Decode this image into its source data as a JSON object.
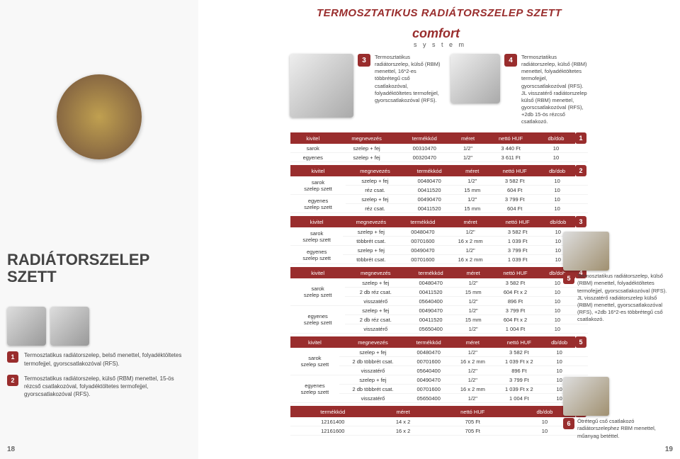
{
  "colors": {
    "brand": "#992d2d",
    "text": "#444",
    "header_bg": "#992d2d",
    "header_fg": "#ffffff"
  },
  "left": {
    "big_title_l1": "RADIÁTORSZELEP",
    "big_title_l2": "SZETT",
    "item1_num": "1",
    "item1_desc": "Termosztatikus radiátorszelep, belső menettel, folyadéktöltetes termofejjel, gyorscsatlakozóval (RFS).",
    "item2_num": "2",
    "item2_desc": "Termosztatikus radiátorszelep, külső (RBM) menettel, 15-ös rézcső csatlakozóval, folyadéktöltetes termofejjel, gyorscsatlakozóval (RFS).",
    "page_num": "18"
  },
  "right": {
    "main_title": "TERMOSZTATIKUS RADIÁTORSZELEP SZETT",
    "logo": "comfort",
    "logo_sub": "s y s t e m",
    "prod3_num": "3",
    "prod3_desc": "Termosztatikus radiátorszelep, külső (RBM) menettel, 16*2-es többrétegű cső csatlakozóval, folyadéktöltetes termofejjel, gyorscsatlakozóval (RFS).",
    "prod4_num": "4",
    "prod4_desc": "Termosztatikus radiátorszelep, külső (RBM) menettel, folyadéktöltetes termofejjel, gyorscsatlakozóval (RFS). JL visszatérő radiátorszelep külső (RBM) menettel, gyorscsatlakozóval (RFS), +2db 15-ös rézcső csatlakozó.",
    "side5_num": "5",
    "side5_desc": "Termosztatikus radiátorszelep, külső (RBM) menettel, folyadéktöltetes termofejjel, gyorscsatlakozóval (RFS). JL visszatérő radiátorszelep külső (RBM) menettel, gyorscsatlakozóval (RFS), +2db 16*2-es többrétegű cső csatlakozó.",
    "side6_num": "6",
    "side6_desc": "Ötrétegű cső csatlakozó radiátorszelephez RBM menettel, műanyag betéttel.",
    "page_num": "19",
    "headers": [
      "kivitel",
      "megnevezés",
      "termékkód",
      "méret",
      "nettó HUF",
      "db/dob"
    ],
    "headers6": [
      "termékkód",
      "méret",
      "nettó HUF",
      "db/dob"
    ],
    "table1_num": "1",
    "table1": [
      [
        "sarok",
        "szelep + fej",
        "00310470",
        "1/2\"",
        "3 440 Ft",
        "10"
      ],
      [
        "egyenes",
        "szelep + fej",
        "00320470",
        "1/2\"",
        "3 611 Ft",
        "10"
      ]
    ],
    "table2_num": "2",
    "table2_groups": [
      "sarok\nszelep szett",
      "egyenes\nszelep szett"
    ],
    "table2": [
      [
        "szelep + fej",
        "00480470",
        "1/2\"",
        "3 582 Ft",
        "10"
      ],
      [
        "réz csat.",
        "00411520",
        "15 mm",
        "604 Ft",
        "10"
      ],
      [
        "szelep + fej",
        "00490470",
        "1/2\"",
        "3 799 Ft",
        "10"
      ],
      [
        "réz csat.",
        "00411520",
        "15 mm",
        "604 Ft",
        "10"
      ]
    ],
    "table3_num": "3",
    "table3_groups": [
      "sarok\nszelep szett",
      "egyenes\nszelep szett"
    ],
    "table3": [
      [
        "szelep + fej",
        "00480470",
        "1/2\"",
        "3 582 Ft",
        "10"
      ],
      [
        "többrét csat.",
        "00701600",
        "16 x 2 mm",
        "1 039 Ft",
        "10"
      ],
      [
        "szelep + fej",
        "00490470",
        "1/2\"",
        "3 799 Ft",
        "10"
      ],
      [
        "többrét csat.",
        "00701600",
        "16 x 2 mm",
        "1 039 Ft",
        "10"
      ]
    ],
    "table4_num": "4",
    "table4_groups": [
      "sarok\nszelep szett",
      "egyenes\nszelep szett"
    ],
    "table4": [
      [
        "szelep + fej",
        "00480470",
        "1/2\"",
        "3 582 Ft",
        "10"
      ],
      [
        "2 db réz csat.",
        "00411520",
        "15 mm",
        "604 Ft x 2",
        "10"
      ],
      [
        "visszatérő",
        "05640400",
        "1/2\"",
        "896 Ft",
        "10"
      ],
      [
        "szelep + fej",
        "00490470",
        "1/2\"",
        "3 799 Ft",
        "10"
      ],
      [
        "2 db réz csat.",
        "00411520",
        "15 mm",
        "604 Ft x 2",
        "10"
      ],
      [
        "visszatérő",
        "05650400",
        "1/2\"",
        "1 004 Ft",
        "10"
      ]
    ],
    "table5_num": "5",
    "table5_groups": [
      "sarok\nszelep szett",
      "egyenes\nszelep szett"
    ],
    "table5": [
      [
        "szelep + fej",
        "00480470",
        "1/2\"",
        "3 582 Ft",
        "10"
      ],
      [
        "2 db többrét csat.",
        "00701600",
        "16 x 2 mm",
        "1 039 Ft x 2",
        "10"
      ],
      [
        "visszatérő",
        "05640400",
        "1/2\"",
        "896 Ft",
        "10"
      ],
      [
        "szelep + fej",
        "00490470",
        "1/2\"",
        "3 799 Ft",
        "10"
      ],
      [
        "2 db többrét csat.",
        "00701600",
        "16 x 2 mm",
        "1 039 Ft x 2",
        "10"
      ],
      [
        "visszatérő",
        "05650400",
        "1/2\"",
        "1 004 Ft",
        "10"
      ]
    ],
    "table6_num": "6",
    "table6": [
      [
        "12161400",
        "14 x 2",
        "705 Ft",
        "10"
      ],
      [
        "12161600",
        "16 x 2",
        "705 Ft",
        "10"
      ]
    ]
  }
}
